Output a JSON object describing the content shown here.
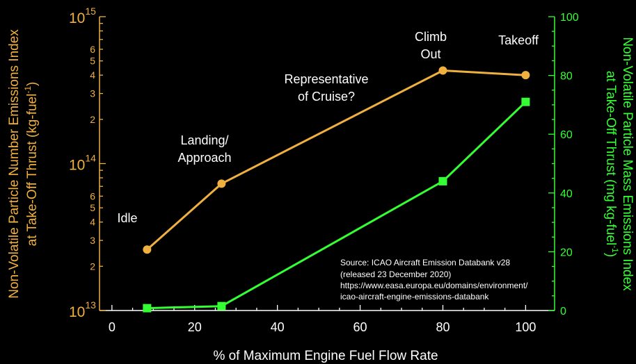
{
  "chart_data": {
    "type": "line",
    "xlabel": "% of Maximum Engine Fuel Flow Rate",
    "xlim": [
      -3,
      107
    ],
    "xticks": [
      0,
      20,
      40,
      60,
      80,
      100
    ],
    "y_left": {
      "label_line1": "Non-Volatile Particle Number Emissions Index",
      "label_line2": "at Take-Off Thrust (kg-fuel",
      "label_sup": "-1",
      "label_close": ")",
      "scale": "log",
      "lim": [
        10000000000000.0,
        1000000000000000.0
      ],
      "color": "#f0b040"
    },
    "y_right": {
      "label_line1": "Non-Volatile Particle Mass Emissions Index",
      "label_line2": "at Take-Off Thrust (mg kg-fuel",
      "label_sup": "-1",
      "label_close": ")",
      "scale": "linear",
      "lim": [
        0,
        100
      ],
      "ticks": [
        0,
        20,
        40,
        60,
        80,
        100
      ],
      "color": "#33ff33"
    },
    "series": [
      {
        "axis": "left",
        "marker": "circle",
        "color": "#f0b040",
        "x": [
          8.5,
          26.5,
          80,
          100
        ],
        "y": [
          26000000000000.0,
          73000000000000.0,
          430000000000000.0,
          400000000000000.0
        ]
      },
      {
        "axis": "right",
        "marker": "square",
        "color": "#33ff33",
        "x": [
          8.5,
          26.5,
          80,
          100
        ],
        "y": [
          0.8,
          1.5,
          44,
          71
        ]
      }
    ],
    "annotations": {
      "idle": "Idle",
      "landing_l1": "Landing/",
      "landing_l2": "Approach",
      "cruise_l1": "Representative",
      "cruise_l2": "of Cruise?",
      "climb_l1": "Climb",
      "climb_l2": "Out",
      "takeoff": "Takeoff"
    },
    "source": [
      "Source: ICAO Aircraft Emission Databank v28",
      "(released 23 December 2020)",
      "https://www.easa.europa.eu/domains/environment/",
      "icao-aircraft-engine-emissions-databank"
    ]
  }
}
